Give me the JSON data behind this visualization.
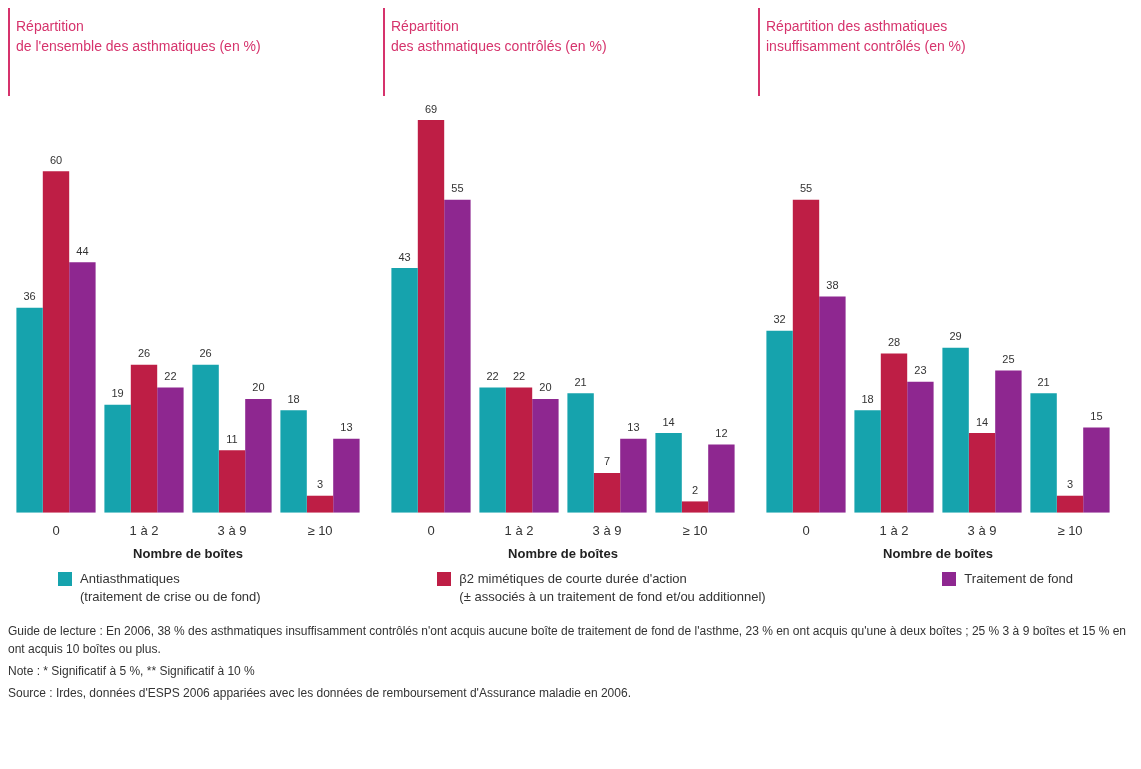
{
  "chart_data": [
    {
      "type": "bar",
      "title": "Répartition\nde l'ensemble des asthmatiques (en %)",
      "xlabel": "Nombre de boîtes",
      "categories": [
        "0",
        "1 à 2",
        "3 à 9",
        "≥ 10"
      ],
      "data_labels": true,
      "legend": "bottom",
      "series": [
        {
          "name": "Antiasthmatiques\n(traitement de crise ou de fond)",
          "color": "#16a3ad",
          "values": [
            36,
            19,
            26,
            18
          ]
        },
        {
          "name": "β2 mimétiques de courte durée d'action\n(± associés à un traitement de fond et/ou additionnel)",
          "color": "#be1e45",
          "values": [
            60,
            26,
            11,
            3
          ]
        },
        {
          "name": "Traitement de fond",
          "color": "#8e2790",
          "values": [
            44,
            22,
            20,
            13
          ]
        }
      ],
      "annotations": [
        "Guide de lecture : En 2006, 38 % des asthmatiques insuffisamment contrôlés n'ont acquis aucune boîte de traitement de fond de l'asthme, 23 % en ont acquis qu'une à deux boîtes ; 25 % 3 à 9 boîtes et 15 % en ont acquis 10 boîtes ou plus.",
        "Note : * Significatif à 5 %, ** Significatif à 10 %",
        "Source : Irdes, données d'ESPS 2006 appariées avec les données de remboursement d'Assurance maladie en 2006."
      ]
    },
    {
      "type": "bar",
      "title": "Répartition\ndes asthmatiques contrôlés (en %)",
      "xlabel": "Nombre de boîtes",
      "categories": [
        "0",
        "1 à 2",
        "3 à 9",
        "≥ 10"
      ],
      "data_labels": true,
      "series": [
        {
          "color": "#16a3ad",
          "values": [
            43,
            22,
            21,
            14
          ]
        },
        {
          "color": "#be1e45",
          "values": [
            69,
            22,
            7,
            2
          ]
        },
        {
          "color": "#8e2790",
          "values": [
            55,
            20,
            13,
            12
          ]
        }
      ]
    },
    {
      "type": "bar",
      "title": "Répartition des asthmatiques\ninsuffisamment contrôlés (en %)",
      "xlabel": "Nombre de boîtes",
      "categories": [
        "0",
        "1 à 2",
        "3 à 9",
        "≥ 10"
      ],
      "data_labels": true,
      "series": [
        {
          "color": "#16a3ad",
          "values": [
            32,
            18,
            29,
            21
          ]
        },
        {
          "color": "#be1e45",
          "values": [
            55,
            28,
            14,
            3
          ]
        },
        {
          "color": "#8e2790",
          "values": [
            38,
            23,
            25,
            15
          ]
        }
      ]
    }
  ]
}
